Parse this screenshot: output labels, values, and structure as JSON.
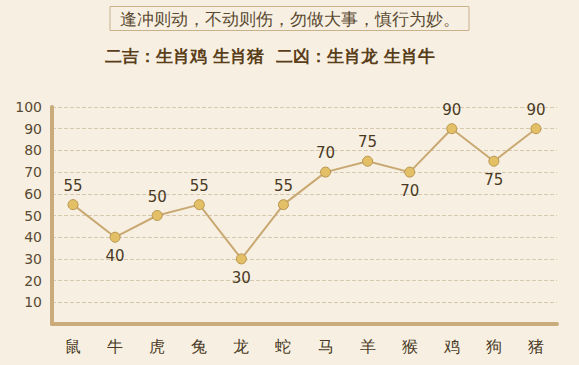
{
  "chart_data": {
    "type": "line",
    "title": "逢冲则动，不动则伤，勿做大事，慎行为妙。",
    "subtitle": "二吉：生肖鸡 生肖猪  二凶：生肖龙 生肖牛",
    "categories": [
      "鼠",
      "牛",
      "虎",
      "兔",
      "龙",
      "蛇",
      "马",
      "羊",
      "猴",
      "鸡",
      "狗",
      "猪"
    ],
    "values": [
      55,
      40,
      50,
      55,
      30,
      55,
      70,
      75,
      70,
      90,
      75,
      90
    ],
    "color": "#c9a872",
    "marker": "circle",
    "ylim": [
      0,
      100
    ],
    "yticks": [
      10,
      20,
      30,
      40,
      50,
      60,
      70,
      80,
      90,
      100
    ],
    "grid": true,
    "data_labels": true
  }
}
